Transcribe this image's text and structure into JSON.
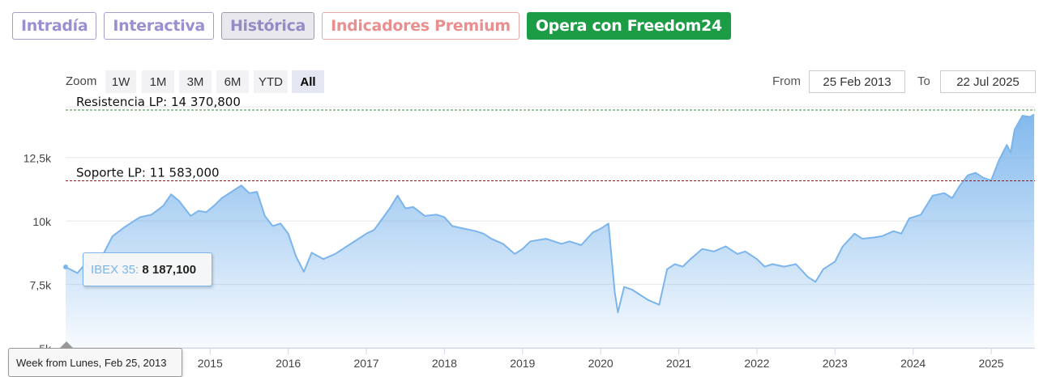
{
  "tabs": [
    {
      "label": "Intradía",
      "kind": "normal"
    },
    {
      "label": "Interactiva",
      "kind": "normal"
    },
    {
      "label": "Histórica",
      "kind": "active"
    },
    {
      "label": "Indicadores Premium",
      "kind": "premium"
    },
    {
      "label": "Opera con Freedom24",
      "kind": "cta"
    }
  ],
  "zoom": {
    "label": "Zoom",
    "buttons": [
      "1W",
      "1M",
      "3M",
      "6M",
      "YTD",
      "All"
    ],
    "active": "All"
  },
  "range": {
    "from_label": "From",
    "from_value": "25 Feb 2013",
    "to_label": "To",
    "to_value": "22 Jul 2025"
  },
  "tooltip": {
    "series_name": "IBEX 35",
    "value": "8 187,100",
    "x_label": "Week from Lunes, Feb 25, 2013"
  },
  "colors": {
    "series_line": "#7cb5ec",
    "resistance_line": "#2e8b2e",
    "support_line": "#8b1a1a",
    "tab_purple": "#9a8fd0",
    "tab_premium": "#e98f8f",
    "cta_green": "#1d9c46"
  },
  "chart_data": {
    "type": "area",
    "series": [
      {
        "name": "IBEX 35",
        "x": [
          2013.15,
          2013.3,
          2013.4,
          2013.5,
          2013.6,
          2013.75,
          2013.9,
          2014.0,
          2014.1,
          2014.25,
          2014.4,
          2014.5,
          2014.6,
          2014.75,
          2014.85,
          2014.95,
          2015.05,
          2015.15,
          2015.3,
          2015.4,
          2015.5,
          2015.6,
          2015.7,
          2015.8,
          2015.9,
          2016.0,
          2016.1,
          2016.2,
          2016.3,
          2016.45,
          2016.6,
          2016.75,
          2016.9,
          2017.0,
          2017.1,
          2017.3,
          2017.4,
          2017.5,
          2017.6,
          2017.75,
          2017.9,
          2018.0,
          2018.1,
          2018.25,
          2018.4,
          2018.5,
          2018.6,
          2018.75,
          2018.9,
          2019.0,
          2019.1,
          2019.3,
          2019.5,
          2019.6,
          2019.75,
          2019.9,
          2020.0,
          2020.1,
          2020.18,
          2020.22,
          2020.3,
          2020.4,
          2020.5,
          2020.6,
          2020.75,
          2020.85,
          2020.95,
          2021.05,
          2021.15,
          2021.3,
          2021.45,
          2021.6,
          2021.75,
          2021.85,
          2022.0,
          2022.1,
          2022.2,
          2022.35,
          2022.5,
          2022.65,
          2022.75,
          2022.85,
          2023.0,
          2023.1,
          2023.25,
          2023.35,
          2023.5,
          2023.6,
          2023.75,
          2023.85,
          2023.95,
          2024.1,
          2024.25,
          2024.4,
          2024.5,
          2024.6,
          2024.7,
          2024.8,
          2024.9,
          2025.0,
          2025.1,
          2025.2,
          2025.25,
          2025.3,
          2025.4,
          2025.5,
          2025.55
        ],
        "y": [
          8187,
          7950,
          8300,
          8000,
          8500,
          9400,
          9750,
          9950,
          10150,
          10250,
          10600,
          11050,
          10800,
          10200,
          10400,
          10350,
          10600,
          10900,
          11200,
          11400,
          11100,
          11150,
          10200,
          9800,
          9900,
          9500,
          8600,
          8000,
          8750,
          8500,
          8700,
          9000,
          9300,
          9500,
          9650,
          10500,
          11000,
          10500,
          10550,
          10200,
          10250,
          10150,
          9800,
          9700,
          9600,
          9500,
          9300,
          9100,
          8700,
          8900,
          9200,
          9300,
          9100,
          9200,
          9050,
          9550,
          9700,
          9900,
          7200,
          6400,
          7400,
          7300,
          7100,
          6900,
          6700,
          8100,
          8300,
          8200,
          8500,
          8900,
          8800,
          9000,
          8700,
          8800,
          8500,
          8200,
          8300,
          8200,
          8300,
          7800,
          7600,
          8100,
          8400,
          9000,
          9500,
          9300,
          9350,
          9400,
          9600,
          9500,
          10100,
          10250,
          11000,
          11100,
          10900,
          11400,
          11800,
          11900,
          11700,
          11600,
          12400,
          13000,
          12700,
          13600,
          14150,
          14100,
          14200
        ]
      }
    ],
    "ylim": [
      5000,
      14500
    ],
    "xlim": [
      2013.15,
      2025.56
    ],
    "yticks": [
      5000,
      7500,
      10000,
      12500
    ],
    "ytick_labels": [
      "5k",
      "7,5k",
      "10k",
      "12,5k"
    ],
    "xticks": [
      2015,
      2016,
      2017,
      2018,
      2019,
      2020,
      2021,
      2022,
      2023,
      2024,
      2025
    ],
    "xtick_labels": [
      "2015",
      "2016",
      "2017",
      "2018",
      "2019",
      "2020",
      "2021",
      "2022",
      "2023",
      "2024",
      "2025"
    ],
    "hlines": [
      {
        "label": "Resistencia LP: 14 370,800",
        "value": 14370.8,
        "kind": "resistance"
      },
      {
        "label": "Soporte LP: 11 583,000",
        "value": 11583.0,
        "kind": "support"
      }
    ],
    "grid": true,
    "legend": "none"
  }
}
